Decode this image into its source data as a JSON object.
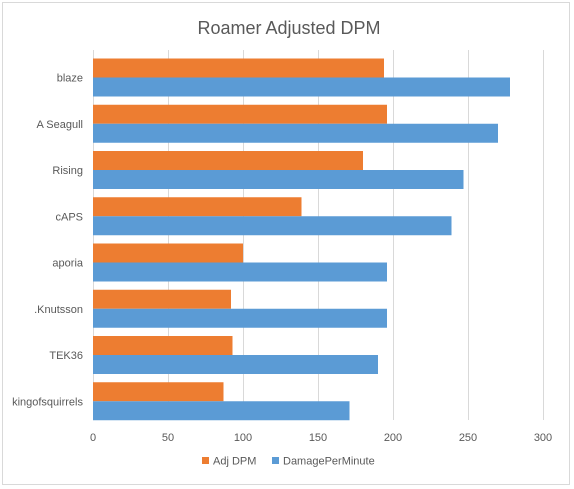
{
  "chart_data": {
    "type": "bar",
    "orientation": "horizontal",
    "title": "Roamer Adjusted DPM",
    "xlabel": "",
    "ylabel": "",
    "categories": [
      "blaze",
      "A Seagull",
      "Rising",
      "cAPS",
      "aporia",
      ".Knutsson",
      "TEK36",
      "kingofsquirrels"
    ],
    "series": [
      {
        "name": "Adj DPM",
        "color": "#ED7D31",
        "values": [
          194,
          196,
          180,
          139,
          100,
          92,
          93,
          87
        ]
      },
      {
        "name": "DamagePerMinute",
        "color": "#5B9BD5",
        "values": [
          278,
          270,
          247,
          239,
          196,
          196,
          190,
          171
        ]
      }
    ],
    "xlim": [
      0,
      300
    ],
    "xticks": [
      0,
      50,
      100,
      150,
      200,
      250,
      300
    ],
    "grid": true,
    "legend": "bottom"
  }
}
